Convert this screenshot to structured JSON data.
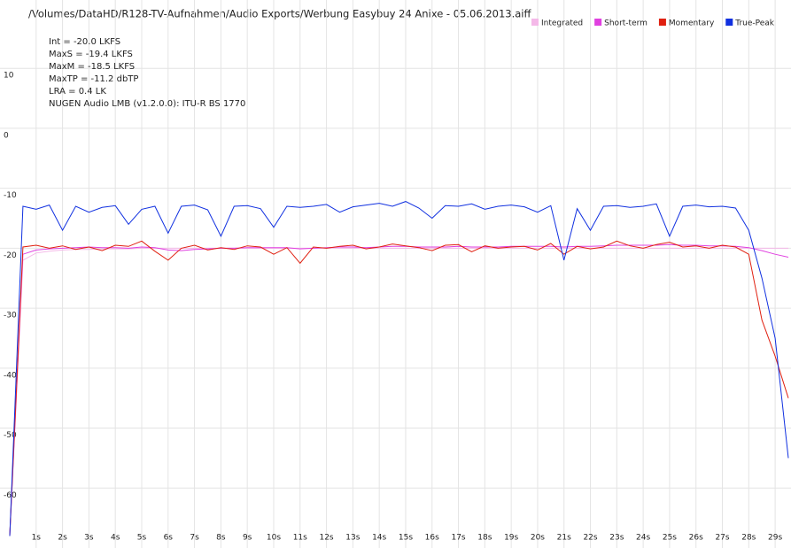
{
  "chart_data": {
    "type": "line",
    "title": "/Volumes/DataHD/R128-TV-Aufnahmen/Audio Exports/Werbung Easybuy 24 Anixe - 05.06.2013.aiff",
    "stats": [
      "Int = -20.0 LKFS",
      "MaxS = -19.4 LKFS",
      "MaxM = -18.5 LKFS",
      "MaxTP = -11.2 dbTP",
      "LRA = 0.4 LK",
      "NUGEN Audio LMB (v1.2.0.0): ITU-R BS 1770"
    ],
    "x": [
      0,
      0.5,
      1,
      1.5,
      2,
      2.5,
      3,
      3.5,
      4,
      4.5,
      5,
      5.5,
      6,
      6.5,
      7,
      7.5,
      8,
      8.5,
      9,
      9.5,
      10,
      10.5,
      11,
      11.5,
      12,
      12.5,
      13,
      13.5,
      14,
      14.5,
      15,
      15.5,
      16,
      16.5,
      17,
      17.5,
      18,
      18.5,
      19,
      19.5,
      20,
      20.5,
      21,
      21.5,
      22,
      22.5,
      23,
      23.5,
      24,
      24.5,
      25,
      25.5,
      26,
      26.5,
      27,
      27.5,
      28,
      28.5,
      29,
      29.5
    ],
    "series": [
      {
        "name": "Integrated",
        "color": "#f4b8e8",
        "values": [
          -68,
          -22,
          -20.8,
          -20.5,
          -20.3,
          -20.2,
          -20.2,
          -20.1,
          -20.1,
          -20.1,
          -20,
          -20,
          -20,
          -20,
          -20,
          -20,
          -20,
          -20,
          -20,
          -20,
          -20,
          -20,
          -20,
          -20,
          -20,
          -20,
          -20,
          -20,
          -20,
          -20,
          -20,
          -20,
          -20,
          -20,
          -20,
          -20,
          -20,
          -20,
          -20,
          -20,
          -20,
          -20,
          -20,
          -20,
          -20,
          -20,
          -20,
          -20,
          -20,
          -20,
          -20,
          -20,
          -20,
          -20,
          -20,
          -20,
          -20,
          -20,
          -20,
          -20
        ]
      },
      {
        "name": "Short-term",
        "color": "#e040e0",
        "values": [
          -68,
          -21,
          -20.3,
          -20.1,
          -20,
          -19.9,
          -19.8,
          -19.9,
          -19.9,
          -20,
          -19.8,
          -19.9,
          -20.3,
          -20.4,
          -20.2,
          -20.1,
          -20,
          -20,
          -19.9,
          -19.9,
          -19.9,
          -19.9,
          -20.1,
          -20,
          -19.9,
          -19.8,
          -19.8,
          -19.9,
          -19.8,
          -19.7,
          -19.7,
          -19.8,
          -19.8,
          -19.8,
          -19.7,
          -19.8,
          -19.8,
          -19.8,
          -19.7,
          -19.7,
          -19.7,
          -19.7,
          -19.8,
          -19.7,
          -19.7,
          -19.6,
          -19.5,
          -19.5,
          -19.5,
          -19.5,
          -19.4,
          -19.5,
          -19.5,
          -19.6,
          -19.6,
          -19.7,
          -19.9,
          -20.4,
          -21,
          -21.5
        ]
      },
      {
        "name": "Momentary",
        "color": "#e02010",
        "values": [
          -68,
          -19.8,
          -19.5,
          -20,
          -19.6,
          -20.2,
          -19.8,
          -20.4,
          -19.5,
          -19.7,
          -18.8,
          -20.5,
          -22,
          -20,
          -19.5,
          -20.3,
          -19.9,
          -20.2,
          -19.6,
          -19.8,
          -21,
          -19.9,
          -22.5,
          -19.8,
          -20,
          -19.7,
          -19.5,
          -20.1,
          -19.8,
          -19.3,
          -19.6,
          -19.9,
          -20.4,
          -19.5,
          -19.4,
          -20.6,
          -19.6,
          -20,
          -19.8,
          -19.7,
          -20.3,
          -19.2,
          -21,
          -19.7,
          -20.1,
          -19.8,
          -18.8,
          -19.6,
          -20,
          -19.4,
          -19,
          -19.8,
          -19.6,
          -20,
          -19.5,
          -19.8,
          -21,
          -32,
          -38,
          -45
        ]
      },
      {
        "name": "True-Peak",
        "color": "#1030e0",
        "values": [
          -68,
          -13,
          -13.5,
          -12.8,
          -17,
          -13,
          -14,
          -13.2,
          -12.9,
          -16,
          -13.5,
          -13,
          -17.5,
          -13,
          -12.8,
          -13.6,
          -18,
          -13,
          -12.9,
          -13.4,
          -16.5,
          -13,
          -13.2,
          -13,
          -12.7,
          -14,
          -13.1,
          -12.8,
          -12.5,
          -13,
          -12.2,
          -13.3,
          -15,
          -12.9,
          -13,
          -12.6,
          -13.5,
          -13,
          -12.8,
          -13.1,
          -14,
          -12.9,
          -22,
          -13.4,
          -17,
          -13,
          -12.9,
          -13.2,
          -13,
          -12.6,
          -18,
          -13,
          -12.8,
          -13.1,
          -13,
          -13.3,
          -17,
          -25,
          -35,
          -55
        ]
      }
    ],
    "xlim": [
      0,
      29.6
    ],
    "ylim": [
      -70,
      21.4
    ],
    "xticks": [
      {
        "value": 1,
        "label": "1s"
      },
      {
        "value": 2,
        "label": "2s"
      },
      {
        "value": 3,
        "label": "3s"
      },
      {
        "value": 4,
        "label": "4s"
      },
      {
        "value": 5,
        "label": "5s"
      },
      {
        "value": 6,
        "label": "6s"
      },
      {
        "value": 7,
        "label": "7s"
      },
      {
        "value": 8,
        "label": "8s"
      },
      {
        "value": 9,
        "label": "9s"
      },
      {
        "value": 10,
        "label": "10s"
      },
      {
        "value": 11,
        "label": "11s"
      },
      {
        "value": 12,
        "label": "12s"
      },
      {
        "value": 13,
        "label": "13s"
      },
      {
        "value": 14,
        "label": "14s"
      },
      {
        "value": 15,
        "label": "15s"
      },
      {
        "value": 16,
        "label": "16s"
      },
      {
        "value": 17,
        "label": "17s"
      },
      {
        "value": 18,
        "label": "18s"
      },
      {
        "value": 19,
        "label": "19s"
      },
      {
        "value": 20,
        "label": "20s"
      },
      {
        "value": 21,
        "label": "21s"
      },
      {
        "value": 22,
        "label": "22s"
      },
      {
        "value": 23,
        "label": "23s"
      },
      {
        "value": 24,
        "label": "24s"
      },
      {
        "value": 25,
        "label": "25s"
      },
      {
        "value": 26,
        "label": "26s"
      },
      {
        "value": 27,
        "label": "27s"
      },
      {
        "value": 28,
        "label": "28s"
      },
      {
        "value": 29,
        "label": "29s"
      }
    ],
    "yticks": [
      10,
      0,
      -10,
      -20,
      -30,
      -40,
      -50,
      -60
    ],
    "grid": true,
    "legend": "top-right"
  }
}
